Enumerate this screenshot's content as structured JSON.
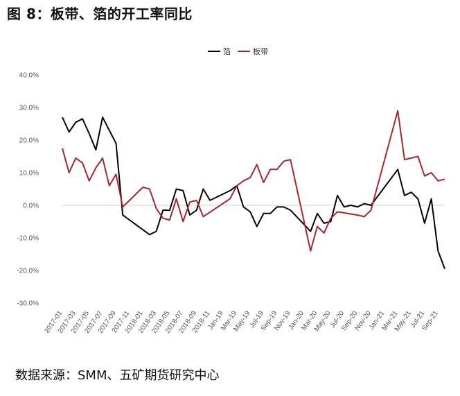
{
  "title": "图 8：板带、箔的开工率同比",
  "source": "数据来源：SMM、五矿期货研究中心",
  "colors": {
    "foil": "#000000",
    "strip": "#a8262a"
  },
  "chart_data": {
    "type": "line",
    "ylim": [
      -30,
      40
    ],
    "yticks": [
      "40.0%",
      "30.0%",
      "20.0%",
      "10.0%",
      "0.0%",
      "-10.0%",
      "-20.0%",
      "-30.0%"
    ],
    "ytick_values": [
      40,
      30,
      20,
      10,
      0,
      -10,
      -20,
      -30
    ],
    "x_tick_labels": [
      "2017-01",
      "2017-03",
      "2017-05",
      "2017-07",
      "2017-09",
      "2017-11",
      "2018-01",
      "2018-03",
      "2018-05",
      "2018-07",
      "2018-09",
      "2018-11",
      "Jan-19",
      "Mar-19",
      "May-19",
      "Jul-19",
      "Sep-19",
      "Nov-19",
      "Jan-20",
      "Mar-20",
      "May-20",
      "Jul-20",
      "Sep-20",
      "Nov-20",
      "Jan-21",
      "Mar-21",
      "May-21",
      "Jul-21",
      "Sep-21"
    ],
    "legend": [
      "箔",
      "板带"
    ],
    "series": [
      {
        "name": "箔",
        "points": [
          [
            0,
            27
          ],
          [
            1,
            22.5
          ],
          [
            2,
            25.5
          ],
          [
            3,
            26.5
          ],
          [
            4,
            22
          ],
          [
            5,
            17
          ],
          [
            6,
            27
          ],
          [
            7,
            23
          ],
          [
            8,
            19
          ],
          [
            9,
            -3
          ],
          [
            13,
            -9
          ],
          [
            14,
            -8
          ],
          [
            15,
            -1.5
          ],
          [
            16,
            -1.5
          ],
          [
            17,
            5
          ],
          [
            18,
            4.5
          ],
          [
            19,
            -3
          ],
          [
            20,
            -1.5
          ],
          [
            21,
            5
          ],
          [
            22,
            1.5
          ],
          [
            25,
            4.5
          ],
          [
            26,
            6
          ],
          [
            27,
            -0.5
          ],
          [
            28,
            -2
          ],
          [
            29,
            -6.5
          ],
          [
            30,
            -2.5
          ],
          [
            31,
            -2.5
          ],
          [
            32,
            -0.5
          ],
          [
            33,
            -0.5
          ],
          [
            34,
            -1.5
          ],
          [
            37,
            -8
          ],
          [
            38,
            -2.5
          ],
          [
            39,
            -5.5
          ],
          [
            40,
            -5
          ],
          [
            41,
            3
          ],
          [
            42,
            -0.5
          ],
          [
            43,
            0
          ],
          [
            44,
            -0.5
          ],
          [
            45,
            0.5
          ],
          [
            46,
            0
          ],
          [
            50,
            11
          ],
          [
            51,
            3
          ],
          [
            52,
            4
          ],
          [
            53,
            2
          ],
          [
            54,
            -5.5
          ],
          [
            55,
            2
          ],
          [
            56,
            -14
          ],
          [
            57,
            -19.5
          ]
        ]
      },
      {
        "name": "板带",
        "points": [
          [
            0,
            17.5
          ],
          [
            1,
            10
          ],
          [
            2,
            14.5
          ],
          [
            3,
            13
          ],
          [
            4,
            7.5
          ],
          [
            5,
            11.5
          ],
          [
            6,
            14.5
          ],
          [
            7,
            6
          ],
          [
            8,
            9.5
          ],
          [
            9,
            -0.5
          ],
          [
            12,
            5.5
          ],
          [
            13,
            5
          ],
          [
            14,
            -1
          ],
          [
            15,
            -4
          ],
          [
            16,
            -4.5
          ],
          [
            17,
            2
          ],
          [
            18,
            -5
          ],
          [
            19,
            1
          ],
          [
            20,
            1.5
          ],
          [
            21,
            -3.5
          ],
          [
            25,
            2
          ],
          [
            26,
            6
          ],
          [
            27,
            7.5
          ],
          [
            28,
            8.5
          ],
          [
            29,
            12.5
          ],
          [
            30,
            7
          ],
          [
            31,
            11
          ],
          [
            32,
            11
          ],
          [
            33,
            13.5
          ],
          [
            34,
            14
          ],
          [
            37,
            -14
          ],
          [
            38,
            -6.5
          ],
          [
            39,
            -8.5
          ],
          [
            40,
            -4
          ],
          [
            41,
            -2
          ],
          [
            44,
            -3
          ],
          [
            45,
            -3.5
          ],
          [
            46,
            -1.5
          ],
          [
            50,
            29
          ],
          [
            51,
            14
          ],
          [
            52,
            14.5
          ],
          [
            53,
            15
          ],
          [
            54,
            9
          ],
          [
            55,
            10
          ],
          [
            56,
            7.5
          ],
          [
            57,
            8
          ]
        ]
      }
    ]
  }
}
